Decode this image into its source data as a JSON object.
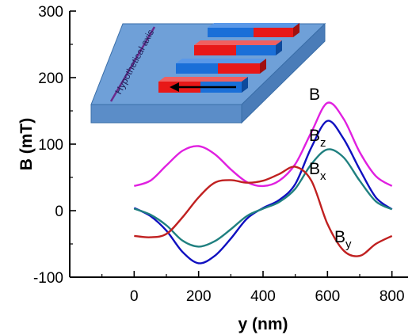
{
  "chart_data": {
    "type": "line",
    "title": "",
    "xlabel": "y (nm)",
    "ylabel": "B (mT)",
    "xlim": [
      -200,
      850
    ],
    "ylim": [
      -100,
      300
    ],
    "x_ticks": [
      0,
      200,
      400,
      600,
      800
    ],
    "y_ticks": [
      -100,
      0,
      100,
      200,
      300
    ],
    "x": [
      0,
      50,
      100,
      150,
      200,
      250,
      300,
      350,
      400,
      450,
      500,
      550,
      600,
      650,
      700,
      750,
      800
    ],
    "series": [
      {
        "name": "B",
        "color": "#e020e0",
        "values": [
          37,
          45,
          68,
          90,
          97,
          85,
          62,
          43,
          37,
          45,
          70,
          118,
          162,
          138,
          88,
          52,
          37
        ]
      },
      {
        "name": "Bz",
        "color": "#1010c0",
        "values": [
          4,
          -8,
          -30,
          -62,
          -79,
          -68,
          -42,
          -12,
          4,
          16,
          40,
          95,
          135,
          108,
          62,
          20,
          2
        ]
      },
      {
        "name": "Bx",
        "color": "#208080",
        "values": [
          3,
          -6,
          -22,
          -45,
          -54,
          -46,
          -28,
          -8,
          3,
          13,
          33,
          70,
          92,
          80,
          45,
          14,
          2
        ]
      },
      {
        "name": "By",
        "color": "#c02020",
        "values": [
          -38,
          -40,
          -35,
          -10,
          20,
          42,
          46,
          42,
          45,
          55,
          66,
          45,
          -20,
          -60,
          -68,
          -50,
          -38
        ]
      }
    ],
    "legend": "inline labels near curves",
    "inset": {
      "description_label": "Hypothetical axis",
      "colors": {
        "plate": "#6fa0d8",
        "red": "#e81818",
        "blue": "#1a6fd8",
        "line": "#6b2a8c"
      }
    },
    "series_labels": [
      {
        "main": "B",
        "sub": ""
      },
      {
        "main": "B",
        "sub": "z"
      },
      {
        "main": "B",
        "sub": "x"
      },
      {
        "main": "B",
        "sub": "y"
      }
    ]
  }
}
